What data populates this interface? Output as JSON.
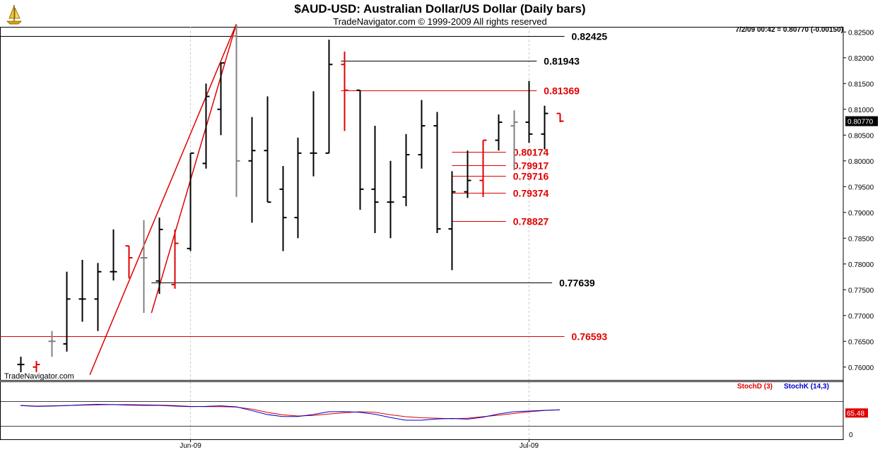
{
  "header": {
    "title": "$AUD-USD:  Australian Dollar/US Dollar  (Daily bars)",
    "subtitle": "TradeNavigator.com © 1999-2009 All rights reserved",
    "status": "7/2/09 00:42 = 0.80770 (-0.00150)",
    "watermark": "TradeNavigator.com"
  },
  "colors": {
    "up_bar": "#000000",
    "neutral_bar": "#808080",
    "down_bar": "#e00000",
    "black_level": "#000000",
    "red_level": "#e00000",
    "trendline": "#e00000",
    "stoch_d": "#e00000",
    "stoch_k": "#0000cc",
    "grid": "#c8c8c8"
  },
  "chart_data": [
    {
      "type": "ohlc",
      "ylim": [
        0.7575,
        0.826
      ],
      "yticks": [
        "0.76000",
        "0.76500",
        "0.77000",
        "0.77500",
        "0.78000",
        "0.78500",
        "0.79000",
        "0.79500",
        "0.80000",
        "0.80500",
        "0.81000",
        "0.81500",
        "0.82000",
        "0.82500"
      ],
      "xticks": [
        {
          "label": "Jun-09",
          "index": 11
        },
        {
          "label": "Jul-09",
          "index": 33
        }
      ],
      "last_price_label": "0.80770",
      "bars": [
        {
          "o": 0.7605,
          "h": 0.762,
          "l": 0.759,
          "c": 0.7605,
          "color": "up"
        },
        {
          "o": 0.76,
          "h": 0.7612,
          "l": 0.759,
          "c": 0.7605,
          "color": "down"
        },
        {
          "o": 0.765,
          "h": 0.767,
          "l": 0.762,
          "c": 0.765,
          "color": "neutral"
        },
        {
          "o": 0.7645,
          "h": 0.7785,
          "l": 0.763,
          "c": 0.7732,
          "color": "up"
        },
        {
          "o": 0.7732,
          "h": 0.7808,
          "l": 0.7688,
          "c": 0.7732,
          "color": "up"
        },
        {
          "o": 0.7732,
          "h": 0.7802,
          "l": 0.767,
          "c": 0.7785,
          "color": "up"
        },
        {
          "o": 0.7785,
          "h": 0.7867,
          "l": 0.7768,
          "c": 0.7785,
          "color": "up"
        },
        {
          "o": 0.7835,
          "h": 0.7835,
          "l": 0.7772,
          "c": 0.7812,
          "color": "down"
        },
        {
          "o": 0.7812,
          "h": 0.7885,
          "l": 0.7705,
          "c": 0.7812,
          "color": "neutral"
        },
        {
          "o": 0.7767,
          "h": 0.789,
          "l": 0.7742,
          "c": 0.7867,
          "color": "up"
        },
        {
          "o": 0.776,
          "h": 0.7867,
          "l": 0.7752,
          "c": 0.784,
          "color": "down"
        },
        {
          "o": 0.783,
          "h": 0.8015,
          "l": 0.7825,
          "c": 0.8015,
          "color": "up"
        },
        {
          "o": 0.7995,
          "h": 0.815,
          "l": 0.7985,
          "c": 0.8125,
          "color": "up"
        },
        {
          "o": 0.81,
          "h": 0.819,
          "l": 0.805,
          "c": 0.819,
          "color": "up"
        },
        {
          "o": 0.8242,
          "h": 0.8265,
          "l": 0.793,
          "c": 0.8,
          "color": "neutral"
        },
        {
          "o": 0.8,
          "h": 0.8085,
          "l": 0.788,
          "c": 0.802,
          "color": "up"
        },
        {
          "o": 0.802,
          "h": 0.8125,
          "l": 0.792,
          "c": 0.792,
          "color": "up"
        },
        {
          "o": 0.7945,
          "h": 0.799,
          "l": 0.7825,
          "c": 0.789,
          "color": "up"
        },
        {
          "o": 0.789,
          "h": 0.8045,
          "l": 0.785,
          "c": 0.8015,
          "color": "up"
        },
        {
          "o": 0.8015,
          "h": 0.8135,
          "l": 0.797,
          "c": 0.8015,
          "color": "up"
        },
        {
          "o": 0.8015,
          "h": 0.8235,
          "l": 0.8015,
          "c": 0.8187,
          "color": "up"
        },
        {
          "o": 0.8187,
          "h": 0.8212,
          "l": 0.8058,
          "c": 0.8137,
          "color": "down"
        },
        {
          "o": 0.8137,
          "h": 0.8137,
          "l": 0.7905,
          "c": 0.7945,
          "color": "up"
        },
        {
          "o": 0.7945,
          "h": 0.8068,
          "l": 0.786,
          "c": 0.792,
          "color": "up"
        },
        {
          "o": 0.792,
          "h": 0.8,
          "l": 0.785,
          "c": 0.792,
          "color": "up"
        },
        {
          "o": 0.793,
          "h": 0.8052,
          "l": 0.7912,
          "c": 0.8012,
          "color": "up"
        },
        {
          "o": 0.8012,
          "h": 0.8118,
          "l": 0.7985,
          "c": 0.8068,
          "color": "up"
        },
        {
          "o": 0.8068,
          "h": 0.8095,
          "l": 0.786,
          "c": 0.7868,
          "color": "up"
        },
        {
          "o": 0.7868,
          "h": 0.798,
          "l": 0.7788,
          "c": 0.794,
          "color": "up"
        },
        {
          "o": 0.794,
          "h": 0.802,
          "l": 0.7928,
          "c": 0.7962,
          "color": "up"
        },
        {
          "o": 0.7962,
          "h": 0.804,
          "l": 0.793,
          "c": 0.804,
          "color": "down"
        },
        {
          "o": 0.804,
          "h": 0.809,
          "l": 0.802,
          "c": 0.8075,
          "color": "up"
        },
        {
          "o": 0.8068,
          "h": 0.8098,
          "l": 0.7982,
          "c": 0.8075,
          "color": "neutral"
        },
        {
          "o": 0.8075,
          "h": 0.8155,
          "l": 0.8035,
          "c": 0.8052,
          "color": "up"
        },
        {
          "o": 0.8052,
          "h": 0.8107,
          "l": 0.8022,
          "c": 0.8092,
          "color": "up"
        },
        {
          "o": 0.8092,
          "h": 0.8092,
          "l": 0.8075,
          "c": 0.8077,
          "color": "down"
        }
      ],
      "levels": [
        {
          "value": 0.82425,
          "label": "0.82425",
          "color": "black",
          "from": 0,
          "to": 35.3
        },
        {
          "value": 0.81943,
          "label": "0.81943",
          "color": "black",
          "from": 20.8,
          "to": 33.5
        },
        {
          "value": 0.81369,
          "label": "0.81369",
          "color": "red",
          "from": 20.8,
          "to": 33.5
        },
        {
          "value": 0.80174,
          "label": "0.80174",
          "color": "red",
          "from": 28,
          "to": 31.5
        },
        {
          "value": 0.79917,
          "label": "0.79917",
          "color": "red",
          "from": 28,
          "to": 31.5
        },
        {
          "value": 0.79716,
          "label": "0.79716",
          "color": "red",
          "from": 28,
          "to": 31.5
        },
        {
          "value": 0.79374,
          "label": "0.79374",
          "color": "red",
          "from": 28,
          "to": 31.5
        },
        {
          "value": 0.78827,
          "label": "0.78827",
          "color": "red",
          "from": 28,
          "to": 31.5
        },
        {
          "value": 0.77639,
          "label": "0.77639",
          "color": "black",
          "from": 8.5,
          "to": 34.5
        },
        {
          "value": 0.76593,
          "label": "0.76593",
          "color": "red",
          "from": 0,
          "to": 35.3
        }
      ],
      "trendlines": [
        {
          "x1": 8.5,
          "y1": 0.7705,
          "x2": 14,
          "y2": 0.8265
        },
        {
          "x1": 4.5,
          "y1": 0.7585,
          "x2": 14,
          "y2": 0.8265
        }
      ]
    },
    {
      "type": "line",
      "title": "StochD (3)   StochK (14,3)",
      "ylim": [
        0,
        100
      ],
      "yticks": [
        "0"
      ],
      "last_value_label": "65.48",
      "series": [
        {
          "name": "StochD (3)",
          "color": "#e00000",
          "values": [
            83,
            80,
            81,
            82,
            84,
            85,
            86,
            86,
            85,
            84,
            82,
            79,
            78,
            78,
            76,
            68,
            55,
            45,
            40,
            42,
            48,
            53,
            57,
            55,
            45,
            37,
            33,
            31,
            29,
            31,
            37,
            43,
            50,
            57,
            62,
            65
          ]
        },
        {
          "name": "StochK (14,3)",
          "color": "#0000cc",
          "values": [
            82,
            79,
            80,
            82,
            85,
            87,
            86,
            84,
            83,
            83,
            80,
            78,
            79,
            81,
            77,
            62,
            46,
            38,
            38,
            46,
            57,
            58,
            55,
            47,
            34,
            23,
            23,
            28,
            30,
            27,
            35,
            48,
            57,
            60,
            63,
            65
          ]
        }
      ]
    }
  ]
}
